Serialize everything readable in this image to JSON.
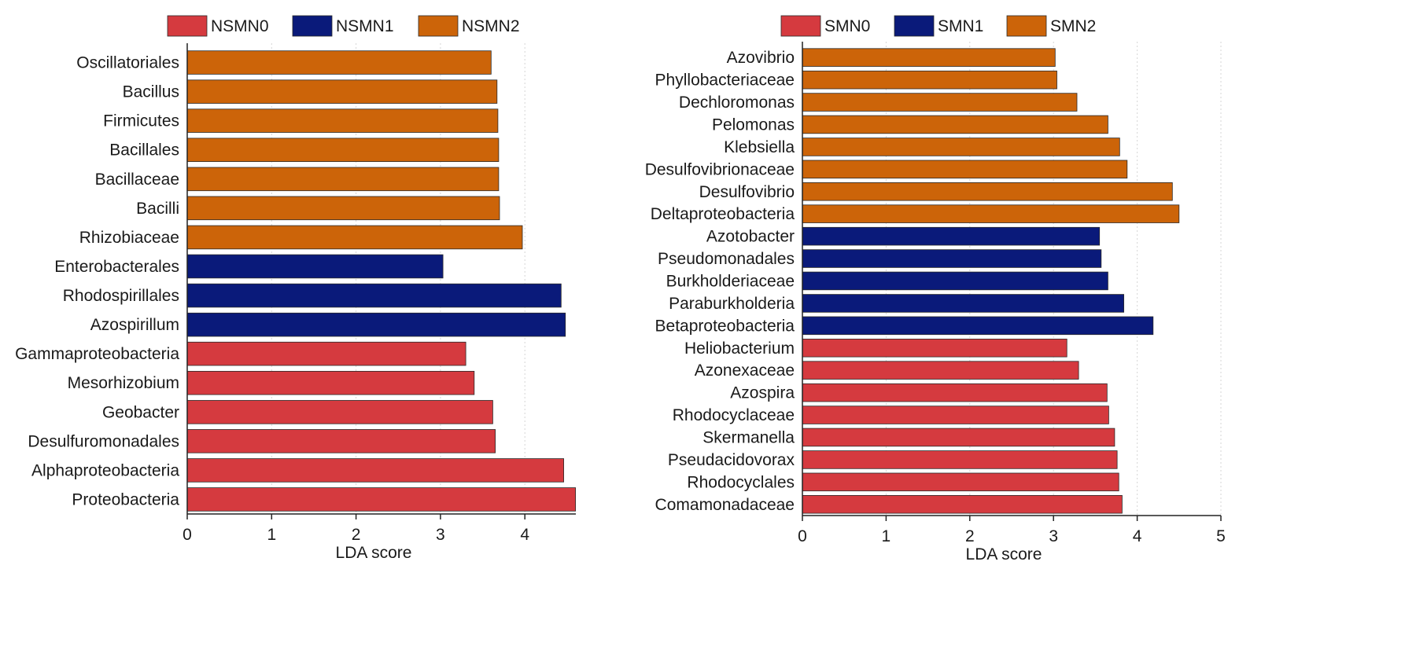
{
  "chart_data": [
    {
      "type": "bar",
      "orientation": "horizontal",
      "title": "",
      "xlabel": "LDA score",
      "ylabel": "",
      "xlim": [
        0,
        4.6
      ],
      "xticks": [
        0,
        1,
        2,
        3,
        4
      ],
      "grid": "vertical dotted",
      "legend_position": "top",
      "legend": [
        {
          "name": "NSMN0",
          "color": "#d53a3f"
        },
        {
          "name": "NSMN1",
          "color": "#0a1a7a"
        },
        {
          "name": "NSMN2",
          "color": "#cc6409"
        }
      ],
      "categories": [
        "Oscillatoriales",
        "Bacillus",
        "Firmicutes",
        "Bacillales",
        "Bacillaceae",
        "Bacilli",
        "Rhizobiaceae",
        "Enterobacterales",
        "Rhodospirillales",
        "Azospirillum",
        "Gammaproteobacteria",
        "Mesorhizobium",
        "Geobacter",
        "Desulfuromonadales",
        "Alphaproteobacteria",
        "Proteobacteria"
      ],
      "values": [
        3.6,
        3.67,
        3.68,
        3.69,
        3.69,
        3.7,
        3.97,
        3.03,
        4.43,
        4.48,
        3.3,
        3.4,
        3.62,
        3.65,
        4.46,
        4.6
      ],
      "groups": [
        "NSMN2",
        "NSMN2",
        "NSMN2",
        "NSMN2",
        "NSMN2",
        "NSMN2",
        "NSMN2",
        "NSMN1",
        "NSMN1",
        "NSMN1",
        "NSMN0",
        "NSMN0",
        "NSMN0",
        "NSMN0",
        "NSMN0",
        "NSMN0"
      ]
    },
    {
      "type": "bar",
      "orientation": "horizontal",
      "title": "",
      "xlabel": "LDA score",
      "ylabel": "",
      "xlim": [
        0,
        5
      ],
      "xticks": [
        0,
        1,
        2,
        3,
        4,
        5
      ],
      "grid": "vertical dotted",
      "legend_position": "top",
      "legend": [
        {
          "name": "SMN0",
          "color": "#d53a3f"
        },
        {
          "name": "SMN1",
          "color": "#0a1a7a"
        },
        {
          "name": "SMN2",
          "color": "#cc6409"
        }
      ],
      "categories": [
        "Azovibrio",
        "Phyllobacteriaceae",
        "Dechloromonas",
        "Pelomonas",
        "Klebsiella",
        "Desulfovibrionaceae",
        "Desulfovibrio",
        "Deltaproteobacteria",
        "Azotobacter",
        "Pseudomonadales",
        "Burkholderiaceae",
        "Paraburkholderia",
        "Betaproteobacteria",
        "Heliobacterium",
        "Azonexaceae",
        "Azospira",
        "Rhodocyclaceae",
        "Skermanella",
        "Pseudacidovorax",
        "Rhodocyclales",
        "Comamonadaceae"
      ],
      "values": [
        3.02,
        3.04,
        3.28,
        3.65,
        3.79,
        3.88,
        4.42,
        4.5,
        3.55,
        3.57,
        3.65,
        3.84,
        4.19,
        3.16,
        3.3,
        3.64,
        3.66,
        3.73,
        3.76,
        3.78,
        3.82
      ],
      "groups": [
        "SMN2",
        "SMN2",
        "SMN2",
        "SMN2",
        "SMN2",
        "SMN2",
        "SMN2",
        "SMN2",
        "SMN1",
        "SMN1",
        "SMN1",
        "SMN1",
        "SMN1",
        "SMN0",
        "SMN0",
        "SMN0",
        "SMN0",
        "SMN0",
        "SMN0",
        "SMN0",
        "SMN0"
      ]
    }
  ]
}
